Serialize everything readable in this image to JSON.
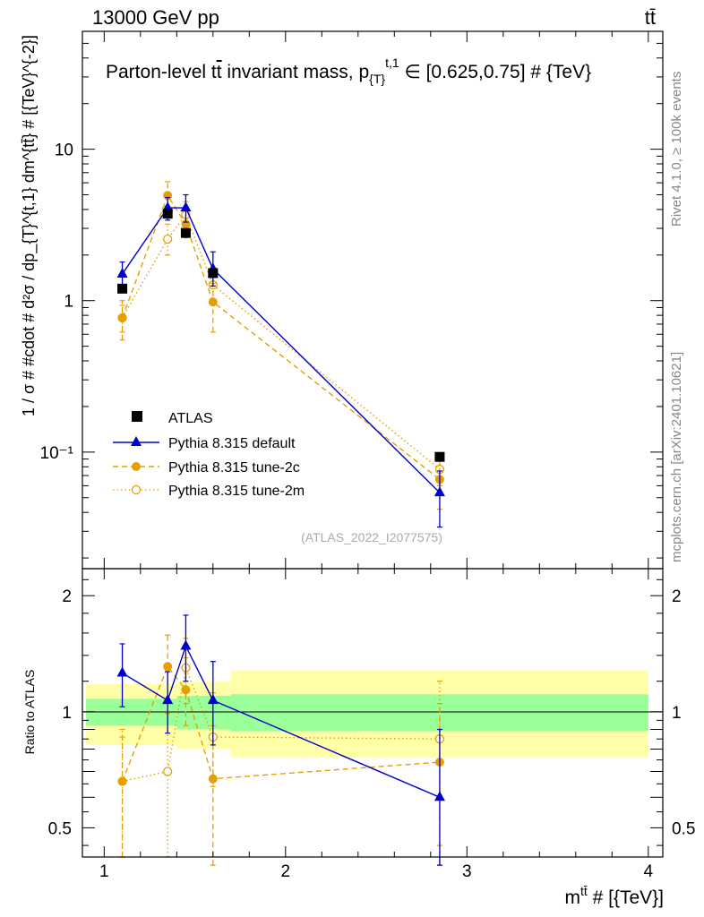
{
  "header": {
    "energy_label": "13000 GeV pp",
    "process_label": "tt̄"
  },
  "side_labels": {
    "rivet": "Rivet 4.1.0, ≥ 100k events",
    "mcplots": "mcplots.cern.ch [arXiv:2401.10621]"
  },
  "chart_data": {
    "type": "scatter",
    "title": "Parton-level tt̄ invariant mass, p_{T}^{t,1} ∈ [0.625,0.75] # {TeV}",
    "title_parts": {
      "prefix": "Parton-level t",
      "bar_t": "t",
      "middle": " invariant mass, p",
      "sub": "{T}",
      "sup": "t,1",
      "suffix": " ∈ [0.625,0.75] # {TeV}"
    },
    "xlabel": "m^{tt̄} # [{TeV}]",
    "xlabel_parts": {
      "base": "m",
      "sup": "tt̄",
      "rest": " # [{TeV}]"
    },
    "ylabel": "1 / σ # #cdot # d²σ / dp_{T}^{t,1} dm^{tt̄} # [{TeV}^{-2}]",
    "ratio_ylabel": "Ratio to ATLAS",
    "xlim": [
      0.88,
      4.08
    ],
    "ylim": [
      0.017,
      60
    ],
    "ratio_ylim": [
      0.42,
      2.35
    ],
    "yscale": "log",
    "ratio_yscale": "log",
    "x_ticks": [
      1,
      2,
      3,
      4
    ],
    "x_tick_labels": [
      "1",
      "2",
      "3",
      "4"
    ],
    "y_ticks": [
      0.1,
      1,
      10
    ],
    "y_tick_labels": [
      "10⁻¹",
      "1",
      "10"
    ],
    "ratio_ticks": [
      0.5,
      1,
      2
    ],
    "ratio_tick_labels": [
      "0.5",
      "1",
      "2"
    ],
    "watermark": "(ATLAS_2022_I2077575)",
    "legend_position": "lower-left",
    "data": {
      "name": "ATLAS",
      "color": "#000000",
      "x": [
        1.1,
        1.35,
        1.45,
        1.6,
        2.85
      ],
      "y": [
        1.2,
        3.75,
        2.8,
        1.52,
        0.093
      ],
      "bins": [
        [
          0.9,
          1.3
        ],
        [
          1.3,
          1.4
        ],
        [
          1.4,
          1.5
        ],
        [
          1.5,
          1.7
        ],
        [
          1.7,
          4.0
        ]
      ],
      "band_green": [
        [
          0.92,
          1.08
        ],
        [
          0.92,
          1.08
        ],
        [
          0.9,
          1.1
        ],
        [
          0.9,
          1.1
        ],
        [
          0.89,
          1.11
        ]
      ],
      "band_yellow": [
        [
          0.82,
          1.18
        ],
        [
          0.82,
          1.18
        ],
        [
          0.8,
          1.2
        ],
        [
          0.8,
          1.2
        ],
        [
          0.76,
          1.28
        ]
      ]
    },
    "series": [
      {
        "name": "Pythia 8.315 default",
        "color": "#0000cc",
        "line": "solid",
        "marker": "triangle",
        "x": [
          1.1,
          1.35,
          1.45,
          1.6,
          2.85
        ],
        "y": [
          1.5,
          4.1,
          4.1,
          1.62,
          0.054
        ],
        "y_err": [
          [
            1.25,
            1.8
          ],
          [
            3.4,
            4.8
          ],
          [
            3.3,
            5.0
          ],
          [
            1.25,
            2.1
          ],
          [
            0.032,
            0.075
          ]
        ],
        "ratio": [
          1.26,
          1.07,
          1.48,
          1.07,
          0.6
        ],
        "ratio_err": [
          [
            1.03,
            1.5
          ],
          [
            0.88,
            1.27
          ],
          [
            1.2,
            1.78
          ],
          [
            0.82,
            1.35
          ],
          [
            0.4,
            0.9
          ]
        ]
      },
      {
        "name": "Pythia 8.315 tune-2c",
        "color": "#e69f00",
        "line": "dashed",
        "marker": "filled-circle",
        "x": [
          1.1,
          1.35,
          1.45,
          1.6,
          2.85
        ],
        "y": [
          0.77,
          4.95,
          3.2,
          0.98,
          0.066
        ],
        "y_err": [
          [
            0.55,
            1.0
          ],
          [
            4.2,
            6.1
          ],
          [
            2.6,
            3.9
          ],
          [
            0.62,
            1.3
          ],
          [
            0.042,
            0.09
          ]
        ],
        "ratio": [
          0.66,
          1.31,
          1.14,
          0.67,
          0.74
        ],
        "ratio_err": [
          [
            0.42,
            0.86
          ],
          [
            1.05,
            1.58
          ],
          [
            0.92,
            1.38
          ],
          [
            0.4,
            0.92
          ],
          [
            0.4,
            1.05
          ]
        ]
      },
      {
        "name": "Pythia 8.315 tune-2m",
        "color": "#e69f00",
        "line": "dotted",
        "marker": "open-circle",
        "x": [
          1.1,
          1.35,
          1.45,
          1.6,
          2.85
        ],
        "y": [
          0.77,
          2.55,
          3.7,
          1.27,
          0.077
        ],
        "y_err": [
          [
            0.62,
            0.93
          ],
          [
            2.0,
            3.2
          ],
          [
            2.9,
            4.5
          ],
          [
            0.95,
            1.6
          ],
          [
            0.06,
            0.095
          ]
        ],
        "ratio": [
          0.66,
          0.7,
          1.3,
          0.86,
          0.85
        ],
        "ratio_err": [
          [
            0.42,
            0.9
          ],
          [
            0.42,
            0.99
          ],
          [
            1.05,
            1.55
          ],
          [
            0.64,
            1.12
          ],
          [
            0.45,
            1.2
          ]
        ]
      }
    ]
  }
}
